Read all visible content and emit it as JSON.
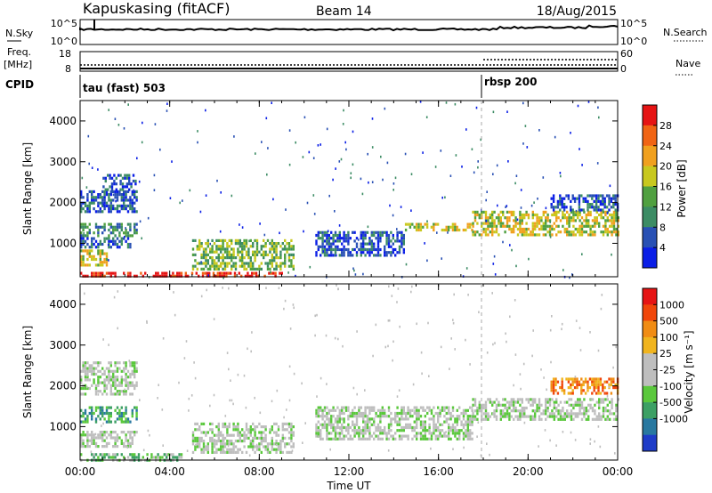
{
  "header": {
    "station": "Kapuskasing (fitACF)",
    "beam": "Beam 14",
    "date": "18/Aug/2015"
  },
  "top_panel": {
    "nsky_label": "N.Sky",
    "nsky_ticks": [
      "10^5",
      "10^0"
    ],
    "nsearch_label": "N.Search",
    "nsearch_ticks": [
      "10^5",
      "10^0"
    ],
    "freq_label_1": "Freq.",
    "freq_label_2": "[MHz]",
    "freq_ticks": [
      "18",
      "8"
    ],
    "nave_label": "Nave",
    "nave_ticks": [
      "60",
      "0"
    ],
    "cpid_label": "CPID",
    "cpid_segments": [
      {
        "label": "tau (fast) 503",
        "start_hour": 0
      },
      {
        "label": "rbsp 200",
        "start_hour": 18
      }
    ]
  },
  "colors": {
    "power_scale": [
      "#0a1ee6",
      "#2850b4",
      "#3c8c64",
      "#50a040",
      "#c8c81e",
      "#f0a01e",
      "#f06414",
      "#e61414"
    ],
    "velocity_scale": [
      "#1e3cc8",
      "#2878a0",
      "#3ca064",
      "#5ac83c",
      "#bebebe",
      "#bebebe",
      "#f0b41e",
      "#f08c14",
      "#f0460a",
      "#e61414"
    ],
    "ground_scatter": "#bebebe"
  },
  "chart_data": [
    {
      "type": "heatmap",
      "name": "power-panel",
      "xlabel": "",
      "ylabel": "Slant Range [km]",
      "x_ticks": [
        "00:00",
        "04:00",
        "08:00",
        "12:00",
        "16:00",
        "20:00",
        "00:00"
      ],
      "xlim_hours": [
        0,
        24
      ],
      "ylim_km": [
        180,
        4500
      ],
      "y_ticks": [
        1000,
        2000,
        3000,
        4000
      ],
      "colorbar_label": "Power [dB]",
      "colorbar_ticks": [
        "4",
        "8",
        "12",
        "16",
        "20",
        "24",
        "28"
      ],
      "regions": [
        {
          "t0": 0.0,
          "t1": 9.0,
          "r0": 190,
          "r1": 300,
          "level": 7
        },
        {
          "t0": 0.0,
          "t1": 1.2,
          "r0": 500,
          "r1": 850,
          "level": 4
        },
        {
          "t0": 0.0,
          "t1": 2.2,
          "r0": 900,
          "r1": 1150,
          "level": 1
        },
        {
          "t0": 0.0,
          "t1": 2.5,
          "r0": 1200,
          "r1": 1500,
          "level": 2
        },
        {
          "t0": 0.0,
          "t1": 2.5,
          "r0": 1800,
          "r1": 2300,
          "level": 1
        },
        {
          "t0": 1.0,
          "t1": 2.5,
          "r0": 2300,
          "r1": 2700,
          "level": 1
        },
        {
          "t0": 5.0,
          "t1": 9.5,
          "r0": 350,
          "r1": 1100,
          "level": 3
        },
        {
          "t0": 10.5,
          "t1": 14.5,
          "r0": 700,
          "r1": 1300,
          "level": 1
        },
        {
          "t0": 14.5,
          "t1": 17.5,
          "r0": 1300,
          "r1": 1500,
          "level": 4
        },
        {
          "t0": 17.5,
          "t1": 24.0,
          "r0": 1200,
          "r1": 1800,
          "level": 4
        },
        {
          "t0": 21.0,
          "t1": 24.0,
          "r0": 1800,
          "r1": 2200,
          "level": 1
        }
      ]
    },
    {
      "type": "heatmap",
      "name": "velocity-panel",
      "xlabel": "Time UT",
      "ylabel": "Slant Range [km]",
      "x_ticks": [
        "00:00",
        "04:00",
        "08:00",
        "12:00",
        "16:00",
        "20:00",
        "00:00"
      ],
      "xlim_hours": [
        0,
        24
      ],
      "ylim_km": [
        180,
        4500
      ],
      "y_ticks": [
        1000,
        2000,
        3000,
        4000
      ],
      "colorbar_label": "Velocity [m s⁻¹]",
      "colorbar_ticks": [
        "1000",
        "500",
        "100",
        "25",
        "-25",
        "-100",
        "-500",
        "-1000"
      ],
      "regions": [
        {
          "t0": 0.0,
          "t1": 4.5,
          "r0": 190,
          "r1": 350,
          "level": 3
        },
        {
          "t0": 0.0,
          "t1": 2.5,
          "r0": 550,
          "r1": 900,
          "level": 4
        },
        {
          "t0": 0.0,
          "t1": 2.5,
          "r0": 1100,
          "r1": 1500,
          "level": 2
        },
        {
          "t0": 0.0,
          "t1": 2.5,
          "r0": 1800,
          "r1": 2600,
          "level": 4
        },
        {
          "t0": 5.0,
          "t1": 9.5,
          "r0": 350,
          "r1": 1100,
          "level": 4
        },
        {
          "t0": 10.5,
          "t1": 17.5,
          "r0": 700,
          "r1": 1500,
          "level": 4
        },
        {
          "t0": 17.5,
          "t1": 24.0,
          "r0": 1200,
          "r1": 1700,
          "level": 4
        },
        {
          "t0": 21.0,
          "t1": 24.0,
          "r0": 1800,
          "r1": 2200,
          "level": 7
        }
      ]
    }
  ]
}
